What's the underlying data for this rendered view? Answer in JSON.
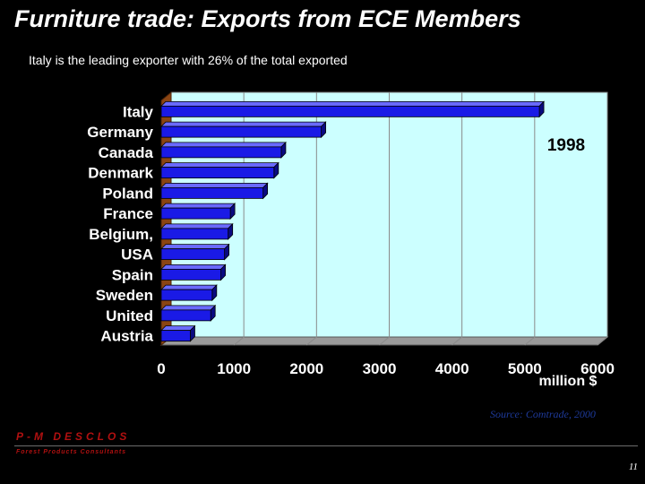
{
  "title": "Furniture trade: Exports from ECE Members",
  "subtitle": "Italy is the leading exporter  with 26% of the total exported",
  "source": "Source: Comtrade, 2000",
  "brand": "P-M DESCLOS",
  "brand_sub": "Forest Products Consultants",
  "page_number": "11",
  "colors": {
    "background": "#000000",
    "plot_bg": "#ccffff",
    "bar": "#1a1ae6",
    "wall": "#8b4513"
  },
  "chart_data": {
    "type": "bar",
    "orientation": "horizontal",
    "year_label": "1998",
    "xlabel": "million $",
    "xlim": [
      0,
      6000
    ],
    "xticks": [
      0,
      1000,
      2000,
      3000,
      4000,
      5000,
      6000
    ],
    "categories": [
      "Italy",
      "Germany",
      "Canada",
      "Denmark",
      "Poland",
      "France",
      "Belgium,",
      "USA",
      "Spain",
      "Sweden",
      "United",
      "Austria"
    ],
    "values": [
      5200,
      2200,
      1650,
      1550,
      1400,
      950,
      920,
      870,
      820,
      700,
      680,
      400
    ],
    "grid": true
  }
}
